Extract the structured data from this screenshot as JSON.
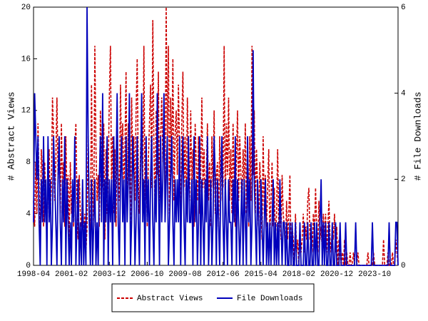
{
  "chart_data": {
    "type": "line",
    "ylabel": "# Abstract Views",
    "y2label": "# File Downloads",
    "legend": "bottom",
    "x": [
      "1998-04",
      "1998-05",
      "1998-06",
      "1998-07",
      "1998-08",
      "1998-09",
      "1998-10",
      "1998-11",
      "1998-12",
      "1999-01",
      "1999-02",
      "1999-03",
      "1999-04",
      "1999-05",
      "1999-06",
      "1999-07",
      "1999-08",
      "1999-09",
      "1999-10",
      "1999-11",
      "1999-12",
      "2000-01",
      "2000-02",
      "2000-03",
      "2000-04",
      "2000-05",
      "2000-06",
      "2000-07",
      "2000-08",
      "2000-09",
      "2000-10",
      "2000-11",
      "2000-12",
      "2001-01",
      "2001-02",
      "2001-03",
      "2001-04",
      "2001-05",
      "2001-06",
      "2001-07",
      "2001-08",
      "2001-09",
      "2001-10",
      "2001-11",
      "2001-12",
      "2002-01",
      "2002-02",
      "2002-03",
      "2002-04",
      "2002-05",
      "2002-06",
      "2002-07",
      "2002-08",
      "2002-09",
      "2002-10",
      "2002-11",
      "2002-12",
      "2003-01",
      "2003-02",
      "2003-03",
      "2003-04",
      "2003-05",
      "2003-06",
      "2003-07",
      "2003-08",
      "2003-09",
      "2003-10",
      "2003-11",
      "2003-12",
      "2004-01",
      "2004-02",
      "2004-03",
      "2004-04",
      "2004-05",
      "2004-06",
      "2004-07",
      "2004-08",
      "2004-09",
      "2004-10",
      "2004-11",
      "2004-12",
      "2005-01",
      "2005-02",
      "2005-03",
      "2005-04",
      "2005-05",
      "2005-06",
      "2005-07",
      "2005-08",
      "2005-09",
      "2005-10",
      "2005-11",
      "2005-12",
      "2006-01",
      "2006-02",
      "2006-03",
      "2006-04",
      "2006-05",
      "2006-06",
      "2006-07",
      "2006-08",
      "2006-09",
      "2006-10",
      "2006-11",
      "2006-12",
      "2007-01",
      "2007-02",
      "2007-03",
      "2007-04",
      "2007-05",
      "2007-06",
      "2007-07",
      "2007-08",
      "2007-09",
      "2007-10",
      "2007-11",
      "2007-12",
      "2008-01",
      "2008-02",
      "2008-03",
      "2008-04",
      "2008-05",
      "2008-06",
      "2008-07",
      "2008-08",
      "2008-09",
      "2008-10",
      "2008-11",
      "2008-12",
      "2009-01",
      "2009-02",
      "2009-03",
      "2009-04",
      "2009-05",
      "2009-06",
      "2009-07",
      "2009-08",
      "2009-09",
      "2009-10",
      "2009-11",
      "2009-12",
      "2010-01",
      "2010-02",
      "2010-03",
      "2010-04",
      "2010-05",
      "2010-06",
      "2010-07",
      "2010-08",
      "2010-09",
      "2010-10",
      "2010-11",
      "2010-12",
      "2011-01",
      "2011-02",
      "2011-03",
      "2011-04",
      "2011-05",
      "2011-06",
      "2011-07",
      "2011-08",
      "2011-09",
      "2011-10",
      "2011-11",
      "2011-12",
      "2012-01",
      "2012-02",
      "2012-03",
      "2012-04",
      "2012-05",
      "2012-06",
      "2012-07",
      "2012-08",
      "2012-09",
      "2012-10",
      "2012-11",
      "2012-12",
      "2013-01",
      "2013-02",
      "2013-03",
      "2013-04",
      "2013-05",
      "2013-06",
      "2013-07",
      "2013-08",
      "2013-09",
      "2013-10",
      "2013-11",
      "2013-12",
      "2014-01",
      "2014-02",
      "2014-03",
      "2014-04",
      "2014-05",
      "2014-06",
      "2014-07",
      "2014-08",
      "2014-09",
      "2014-10",
      "2014-11",
      "2014-12",
      "2015-01",
      "2015-02",
      "2015-03",
      "2015-04",
      "2015-05",
      "2015-06",
      "2015-07",
      "2015-08",
      "2015-09",
      "2015-10",
      "2015-11",
      "2015-12",
      "2016-01",
      "2016-02",
      "2016-03",
      "2016-04",
      "2016-05",
      "2016-06",
      "2016-07",
      "2016-08",
      "2016-09",
      "2016-10",
      "2016-11",
      "2016-12",
      "2017-01",
      "2017-02",
      "2017-03",
      "2017-04",
      "2017-05",
      "2017-06",
      "2017-07",
      "2017-08",
      "2017-09",
      "2017-10",
      "2017-11",
      "2017-12",
      "2018-01",
      "2018-02",
      "2018-03",
      "2018-04",
      "2018-05",
      "2018-06",
      "2018-07",
      "2018-08",
      "2018-09",
      "2018-10",
      "2018-11",
      "2018-12",
      "2019-01",
      "2019-02",
      "2019-03",
      "2019-04",
      "2019-05",
      "2019-06",
      "2019-07",
      "2019-08",
      "2019-09",
      "2019-10",
      "2019-11",
      "2019-12",
      "2020-01",
      "2020-02",
      "2020-03",
      "2020-04",
      "2020-05",
      "2020-06",
      "2020-07",
      "2020-08",
      "2020-09",
      "2020-10",
      "2020-11",
      "2020-12",
      "2021-01",
      "2021-02",
      "2021-03",
      "2021-04",
      "2021-05",
      "2021-06",
      "2021-07",
      "2021-08",
      "2021-09",
      "2021-10",
      "2021-11",
      "2021-12",
      "2022-01",
      "2022-02",
      "2022-03",
      "2022-04",
      "2022-05",
      "2022-06",
      "2022-07",
      "2022-08",
      "2022-09",
      "2022-10",
      "2022-11",
      "2022-12",
      "2023-01",
      "2023-02",
      "2023-03",
      "2023-04",
      "2023-05",
      "2023-06",
      "2023-07",
      "2023-08",
      "2023-09",
      "2023-10",
      "2023-11",
      "2023-12",
      "2024-01",
      "2024-02",
      "2024-03",
      "2024-04",
      "2024-05",
      "2024-06",
      "2024-07",
      "2024-08",
      "2024-09",
      "2024-10",
      "2024-11",
      "2024-12",
      "2025-01",
      "2025-02",
      "2025-03",
      "2025-04",
      "2025-05",
      "2025-06",
      "2025-07"
    ],
    "xticks": [
      "1998-04",
      "2001-02",
      "2003-12",
      "2006-10",
      "2009-08",
      "2012-06",
      "2015-04",
      "2018-02",
      "2020-12",
      "2023-10"
    ],
    "ylim": [
      0,
      20
    ],
    "yticks": [
      0,
      4,
      8,
      12,
      16,
      20
    ],
    "y2lim": [
      0,
      6
    ],
    "y2ticks": [
      0,
      2,
      4,
      6
    ],
    "series": [
      {
        "name": "Abstract Views",
        "color": "#cc0000",
        "dash": true,
        "values": [
          5,
          3,
          8,
          4,
          11,
          6,
          2,
          9,
          7,
          3,
          8,
          5,
          2,
          7,
          9,
          4,
          6,
          13,
          10,
          5,
          8,
          13,
          7,
          9,
          4,
          11,
          6,
          8,
          3,
          10,
          5,
          7,
          2,
          8,
          4,
          6,
          3,
          9,
          11,
          5,
          2,
          7,
          4,
          3,
          6,
          2,
          4,
          1,
          3,
          10,
          4,
          2,
          14,
          6,
          3,
          17,
          9,
          5,
          7,
          3,
          12,
          8,
          6,
          11,
          2,
          9,
          4,
          7,
          13,
          17,
          6,
          10,
          4,
          9,
          3,
          12,
          7,
          5,
          14,
          8,
          11,
          6,
          9,
          15,
          4,
          11,
          7,
          3,
          13,
          8,
          10,
          5,
          12,
          16,
          7,
          4,
          9,
          12,
          6,
          17,
          5,
          10,
          3,
          8,
          11,
          14,
          6,
          19,
          9,
          4,
          12,
          7,
          15,
          5,
          10,
          13,
          8,
          11,
          6,
          20,
          9,
          17,
          4,
          13,
          8,
          16,
          5,
          10,
          12,
          7,
          14,
          9,
          3,
          11,
          15,
          6,
          10,
          4,
          13,
          8,
          5,
          12,
          6,
          9,
          3,
          11,
          8,
          5,
          10,
          4,
          7,
          13,
          6,
          9,
          4,
          7,
          11,
          5,
          8,
          3,
          10,
          6,
          12,
          4,
          7,
          8,
          3,
          10,
          5,
          9,
          6,
          17,
          4,
          11,
          7,
          13,
          5,
          9,
          4,
          11,
          6,
          3,
          8,
          12,
          5,
          10,
          7,
          4,
          9,
          6,
          11,
          4,
          8,
          3,
          10,
          5,
          17,
          7,
          12,
          4,
          9,
          6,
          3,
          8,
          5,
          2,
          10,
          4,
          7,
          3,
          6,
          9,
          2,
          5,
          8,
          3,
          6,
          2,
          4,
          9,
          3,
          5,
          2,
          7,
          4,
          3,
          1,
          5,
          2,
          4,
          7,
          1,
          3,
          2,
          0,
          4,
          1,
          2,
          0,
          3,
          1,
          2,
          4,
          1,
          3,
          2,
          5,
          6,
          2,
          3,
          1,
          4,
          2,
          6,
          3,
          1,
          5,
          2,
          3,
          1,
          4,
          2,
          4,
          1,
          3,
          5,
          2,
          1,
          3,
          2,
          4,
          1,
          3,
          0,
          2,
          1,
          0,
          1,
          0,
          2,
          0,
          1,
          0,
          0,
          1,
          0,
          0,
          1,
          0,
          0,
          0,
          1,
          0,
          0,
          0,
          0,
          0,
          0,
          0,
          0,
          1,
          0,
          0,
          0,
          0,
          1,
          0,
          0,
          0,
          0,
          0,
          0,
          0,
          0,
          2,
          0,
          0,
          0,
          1,
          0,
          0,
          0,
          1,
          0,
          0,
          2,
          1,
          0
        ]
      },
      {
        "name": "File Downloads",
        "color": "#0000bb",
        "axis": "y2",
        "values": [
          1,
          4,
          3,
          2,
          3,
          1,
          0,
          2,
          1,
          3,
          1,
          2,
          0,
          3,
          1,
          2,
          0,
          1,
          3,
          2,
          1,
          0,
          2,
          3,
          1,
          0,
          2,
          1,
          3,
          0,
          2,
          1,
          0,
          1,
          0,
          2,
          1,
          3,
          0,
          1,
          2,
          0,
          1,
          0,
          2,
          0,
          1,
          0,
          6,
          3,
          1,
          0,
          2,
          0,
          1,
          2,
          0,
          1,
          0,
          2,
          3,
          1,
          4,
          0,
          2,
          1,
          3,
          0,
          2,
          1,
          2,
          0,
          3,
          1,
          2,
          4,
          1,
          0,
          2,
          3,
          1,
          2,
          0,
          3,
          1,
          2,
          4,
          0,
          1,
          3,
          2,
          0,
          1,
          3,
          1,
          0,
          2,
          4,
          1,
          2,
          0,
          3,
          1,
          2,
          0,
          2,
          3,
          1,
          0,
          2,
          1,
          4,
          2,
          0,
          3,
          1,
          2,
          4,
          1,
          2,
          3,
          0,
          1,
          2,
          3,
          1,
          0,
          2,
          1,
          2,
          1,
          3,
          0,
          2,
          3,
          1,
          0,
          2,
          1,
          3,
          1,
          1,
          2,
          0,
          3,
          1,
          2,
          0,
          1,
          3,
          0,
          2,
          1,
          0,
          2,
          1,
          3,
          0,
          1,
          2,
          0,
          1,
          3,
          2,
          0,
          2,
          1,
          0,
          2,
          3,
          1,
          0,
          2,
          1,
          0,
          2,
          1,
          1,
          0,
          2,
          1,
          3,
          0,
          2,
          1,
          0,
          1,
          2,
          0,
          2,
          1,
          0,
          3,
          1,
          2,
          0,
          1,
          5,
          2,
          1,
          0,
          2,
          1,
          0,
          2,
          1,
          0,
          1,
          2,
          0,
          1,
          0,
          1,
          0,
          1,
          2,
          0,
          1,
          0,
          1,
          0,
          2,
          1,
          0,
          1,
          1,
          0,
          1,
          0,
          0,
          1,
          0,
          1,
          0,
          0,
          1,
          0,
          0,
          0,
          1,
          0,
          0,
          0,
          1,
          0,
          0,
          1,
          0,
          0,
          1,
          0,
          0,
          1,
          0,
          1,
          0,
          0,
          1,
          2,
          0,
          1,
          0,
          1,
          0,
          0,
          1,
          0,
          0,
          1,
          0,
          0,
          1,
          0,
          0,
          0,
          1,
          0,
          0,
          0,
          0,
          1,
          0,
          0,
          0,
          0,
          0,
          0,
          0,
          0,
          1,
          0,
          0,
          0,
          0,
          0,
          0,
          0,
          0,
          0,
          0,
          0,
          0,
          0,
          0,
          1,
          0,
          0,
          0,
          0,
          0,
          0,
          0,
          0,
          0,
          0,
          0,
          0,
          0,
          0,
          1,
          0,
          0,
          0,
          0,
          0,
          1,
          1,
          0
        ]
      }
    ]
  }
}
